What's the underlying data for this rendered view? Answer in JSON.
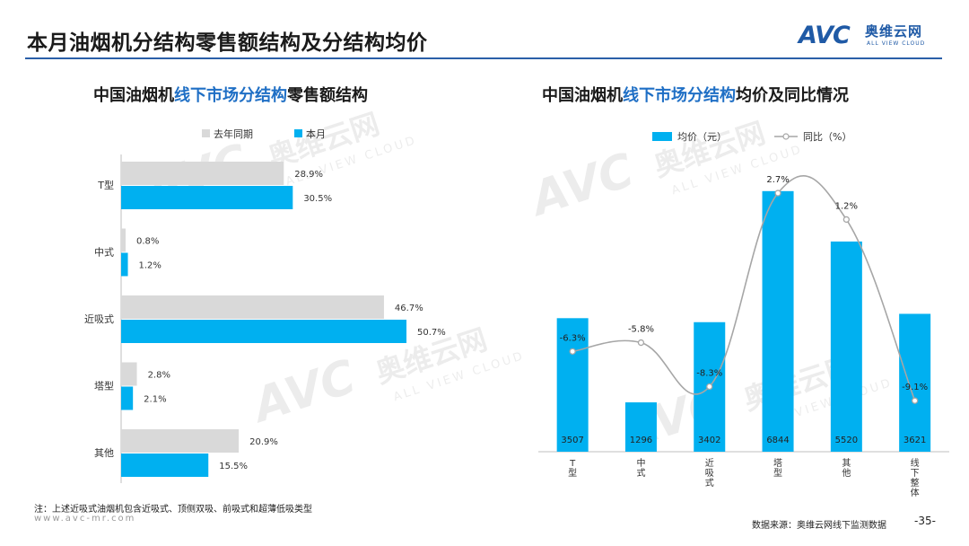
{
  "header": {
    "title": "本月油烟机分结构零售额结构及分结构均价",
    "logo_mark": "AVC",
    "logo_cn": "奥维云网",
    "logo_en": "ALL VIEW CLOUD"
  },
  "watermark": {
    "mark": "AVC",
    "cn": "奥维云网",
    "en": "ALL VIEW CLOUD"
  },
  "left_chart_title": {
    "pre": "中国油烟机",
    "highlight": "线下市场分结构",
    "post": "零售额结构"
  },
  "right_chart_title": {
    "pre": "中国油烟机",
    "highlight": "线下市场分结构",
    "post": "均价及同比情况"
  },
  "colors": {
    "last_year": "#d9d9d9",
    "this_month": "#00b0f0",
    "line": "#a6a6a6",
    "accent": "#1f6fc5",
    "rule": "#2a5fa8"
  },
  "chart_data": [
    {
      "type": "bar",
      "orientation": "horizontal",
      "categories": [
        "T型",
        "中式",
        "近吸式",
        "塔型",
        "其他"
      ],
      "series": [
        {
          "name": "去年同期",
          "values": [
            28.9,
            0.8,
            46.7,
            2.8,
            20.9
          ],
          "labels": [
            "28.9%",
            "0.8%",
            "46.7%",
            "2.8%",
            "20.9%"
          ]
        },
        {
          "name": "本月",
          "values": [
            30.5,
            1.2,
            50.7,
            2.1,
            15.5
          ],
          "labels": [
            "30.5%",
            "1.2%",
            "50.7%",
            "2.1%",
            "15.5%"
          ]
        }
      ],
      "xlim": [
        0,
        55
      ],
      "grid": false,
      "legend": "top"
    },
    {
      "type": "bar",
      "categories": [
        "T型",
        "中式",
        "近吸式",
        "塔型",
        "其他",
        "线下整体"
      ],
      "series": [
        {
          "name": "均价（元）",
          "type": "bar",
          "values": [
            3507,
            1296,
            3402,
            6844,
            5520,
            3621
          ],
          "labels": [
            "3507",
            "1296",
            "3402",
            "6844",
            "5520",
            "3621"
          ]
        },
        {
          "name": "同比（%）",
          "type": "line",
          "values": [
            -6.3,
            -5.8,
            -8.3,
            2.7,
            1.2,
            -9.1
          ],
          "labels": [
            "-6.3%",
            "-5.8%",
            "-8.3%",
            "2.7%",
            "1.2%",
            "-9.1%"
          ]
        }
      ],
      "ylim": [
        0,
        7500
      ],
      "y2lim": [
        -12,
        5
      ],
      "grid": false,
      "legend": "top"
    }
  ],
  "footer": {
    "note": "注：上述近吸式油烟机包含近吸式、顶侧双吸、前吸式和超薄低吸类型",
    "website": "www.avc-mr.com",
    "source": "数据来源：奥维云网线下监测数据",
    "page": "-35-"
  }
}
